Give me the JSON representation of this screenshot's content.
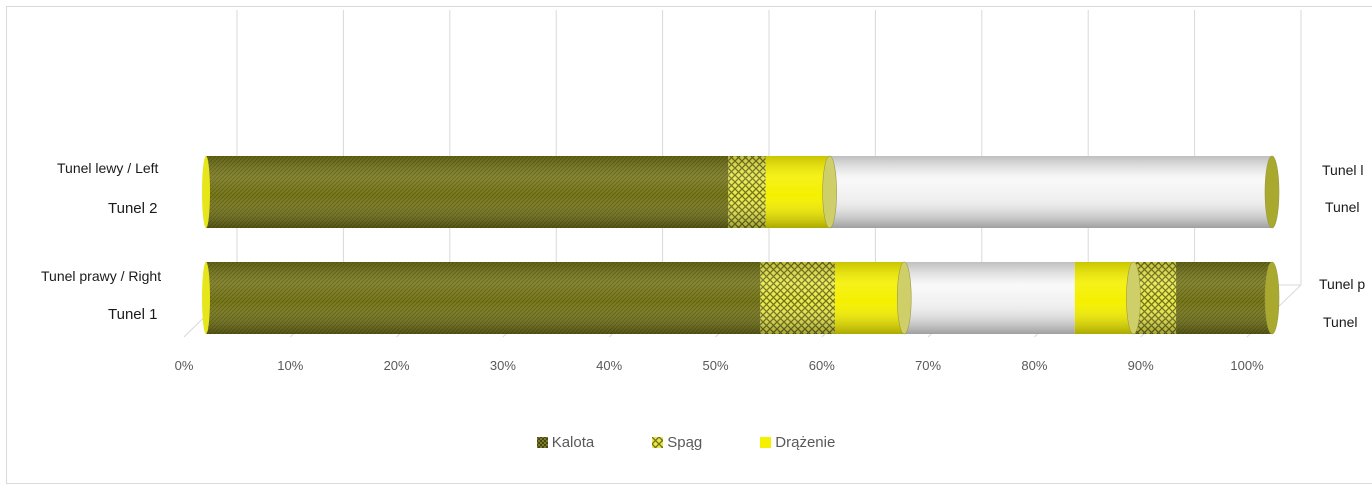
{
  "chart_data": {
    "type": "bar",
    "orientation": "horizontal",
    "stacked": true,
    "percent_stacked": true,
    "style": "3d-cylinder",
    "categories": [
      "Tunel 1",
      "Tunel 2"
    ],
    "category_labels": [
      {
        "line1": "Tunel prawy / Right",
        "line2": "Tunel 1"
      },
      {
        "line1": "Tunel lewy /  Left",
        "line2": "Tunel 2"
      }
    ],
    "right_labels": [
      {
        "line1": "Tunel p",
        "line2": "Tunel"
      },
      {
        "line1": "Tunel l",
        "line2": "Tunel"
      }
    ],
    "segments": [
      [
        {
          "series": "Kalota",
          "start": 0,
          "end": 52
        },
        {
          "series": "Spąg",
          "start": 52,
          "end": 59
        },
        {
          "series": "Drążenie",
          "start": 59,
          "end": 65.5
        },
        {
          "series": "",
          "start": 65.5,
          "end": 81.5
        },
        {
          "series": "Drążenie",
          "start": 81.5,
          "end": 87
        },
        {
          "series": "Spąg",
          "start": 87,
          "end": 91
        },
        {
          "series": "Kalota",
          "start": 91,
          "end": 100
        }
      ],
      [
        {
          "series": "Kalota",
          "start": 0,
          "end": 49
        },
        {
          "series": "Spąg",
          "start": 49,
          "end": 52.5
        },
        {
          "series": "Drążenie",
          "start": 52.5,
          "end": 58.5
        },
        {
          "series": "",
          "start": 58.5,
          "end": 100
        }
      ]
    ],
    "series": [
      {
        "name": "Kalota",
        "color": "#7f7f20"
      },
      {
        "name": "Spąg",
        "color": "#c8c830"
      },
      {
        "name": "Drążenie",
        "color": "#f5f000"
      }
    ],
    "xlim": [
      0,
      100
    ],
    "xticks": [
      "0%",
      "10%",
      "20%",
      "30%",
      "40%",
      "50%",
      "60%",
      "70%",
      "80%",
      "90%",
      "100%"
    ],
    "grid": true,
    "legend_position": "bottom"
  },
  "legend": [
    {
      "label": "Kalota"
    },
    {
      "label": "Spąg"
    },
    {
      "label": "Drążenie"
    }
  ]
}
